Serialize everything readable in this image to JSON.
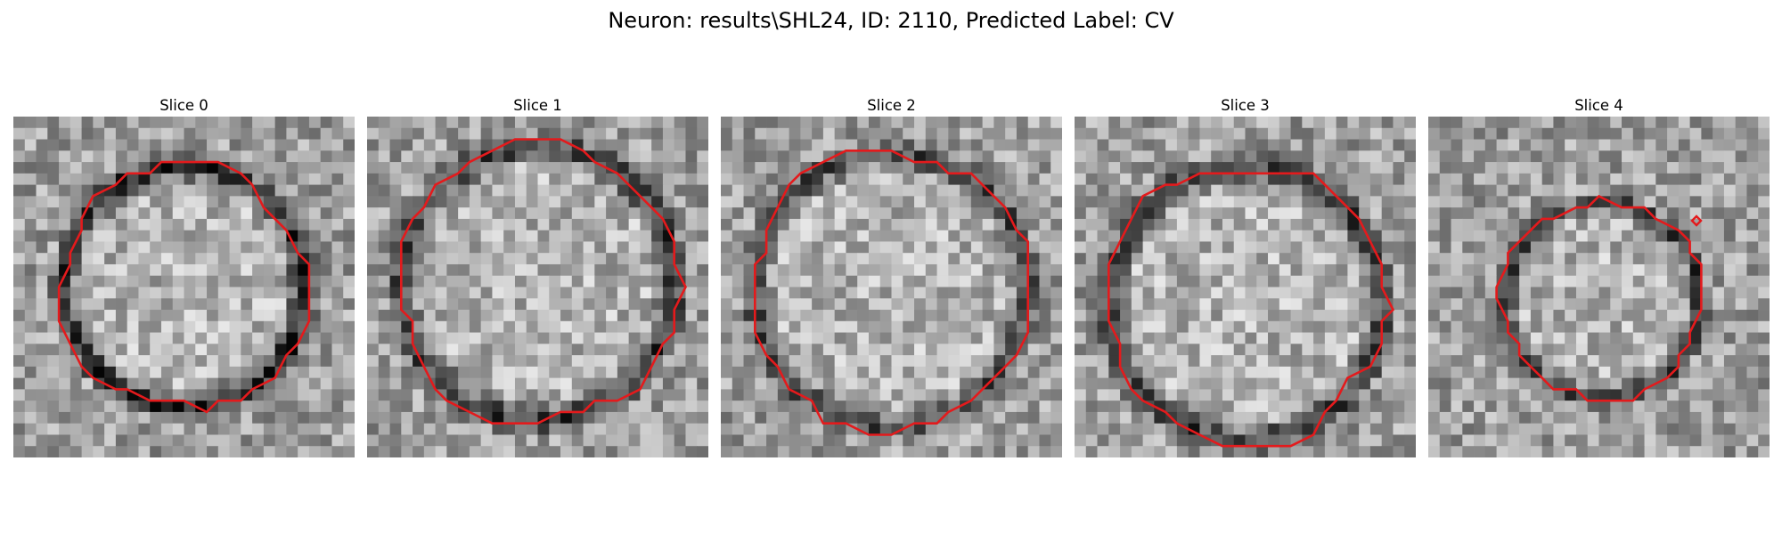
{
  "figure": {
    "title": "Neuron: results\\SHL24, ID: 2110, Predicted Label: CV"
  },
  "panels": [
    {
      "title": "Slice 0"
    },
    {
      "title": "Slice 1"
    },
    {
      "title": "Slice 2"
    },
    {
      "title": "Slice 3"
    },
    {
      "title": "Slice 4"
    }
  ],
  "colors": {
    "contour": "#e41a1c",
    "background": "#ffffff"
  }
}
